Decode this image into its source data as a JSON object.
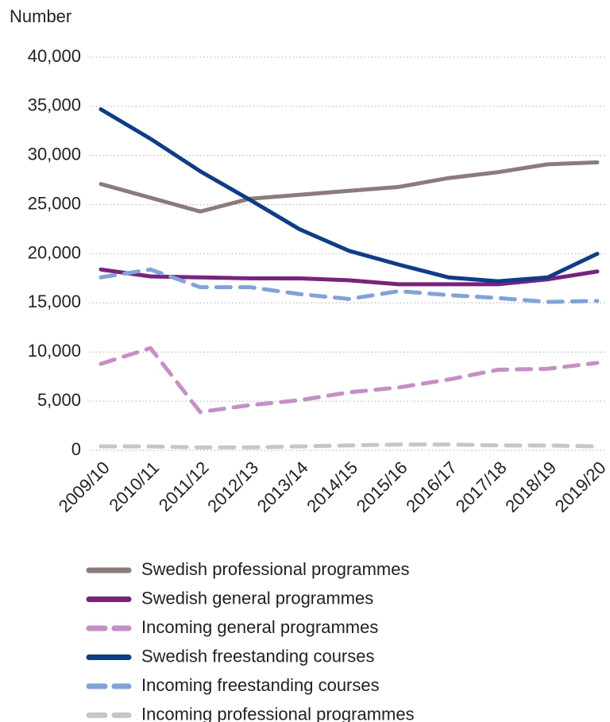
{
  "chart_data": {
    "type": "line",
    "y_axis_label": "Number",
    "categories": [
      "2009/10",
      "2010/11",
      "2011/12",
      "2012/13",
      "2013/14",
      "2014/15",
      "2015/16",
      "2016/17",
      "2017/18",
      "2018/19",
      "2019/20"
    ],
    "series": [
      {
        "name": "Swedish professional programmes",
        "color": "#8c7b78",
        "dashed": false,
        "values": [
          27100,
          25700,
          24300,
          25600,
          26000,
          26400,
          26800,
          27700,
          28300,
          29100,
          29300
        ]
      },
      {
        "name": "Swedish general programmes",
        "color": "#7b1f80",
        "dashed": false,
        "values": [
          18400,
          17700,
          17600,
          17500,
          17500,
          17300,
          16900,
          16900,
          16900,
          17400,
          18200
        ]
      },
      {
        "name": "Incoming general programmes",
        "color": "#c88dc6",
        "dashed": true,
        "values": [
          8800,
          10400,
          3900,
          4600,
          5100,
          5900,
          6400,
          7200,
          8200,
          8300,
          8900
        ]
      },
      {
        "name": "Swedish freestanding courses",
        "color": "#0b3d8f",
        "dashed": false,
        "values": [
          34700,
          31700,
          28400,
          25500,
          22500,
          20300,
          18900,
          17600,
          17200,
          17600,
          20000
        ]
      },
      {
        "name": "Incoming freestanding courses",
        "color": "#7fa3dc",
        "dashed": true,
        "values": [
          17600,
          18400,
          16600,
          16600,
          15900,
          15400,
          16200,
          15800,
          15500,
          15100,
          15200
        ]
      },
      {
        "name": "Incoming professional programmes",
        "color": "#c9c5c5",
        "dashed": true,
        "values": [
          400,
          400,
          300,
          300,
          400,
          500,
          600,
          600,
          500,
          500,
          400
        ]
      }
    ],
    "ylim": [
      0,
      40000
    ],
    "yticks": [
      0,
      {
        "value": 5000,
        "label": "5,000"
      },
      {
        "value": 10000,
        "label": "10,000"
      },
      {
        "value": 15000,
        "label": "15,000"
      },
      {
        "value": 20000,
        "label": "20,000"
      },
      {
        "value": 25000,
        "label": "25,000"
      },
      {
        "value": 30000,
        "label": "30,000"
      },
      {
        "value": 35000,
        "label": "35,000"
      },
      {
        "value": 40000,
        "label": "40,000"
      }
    ],
    "grid": true,
    "legend": "bottom"
  }
}
